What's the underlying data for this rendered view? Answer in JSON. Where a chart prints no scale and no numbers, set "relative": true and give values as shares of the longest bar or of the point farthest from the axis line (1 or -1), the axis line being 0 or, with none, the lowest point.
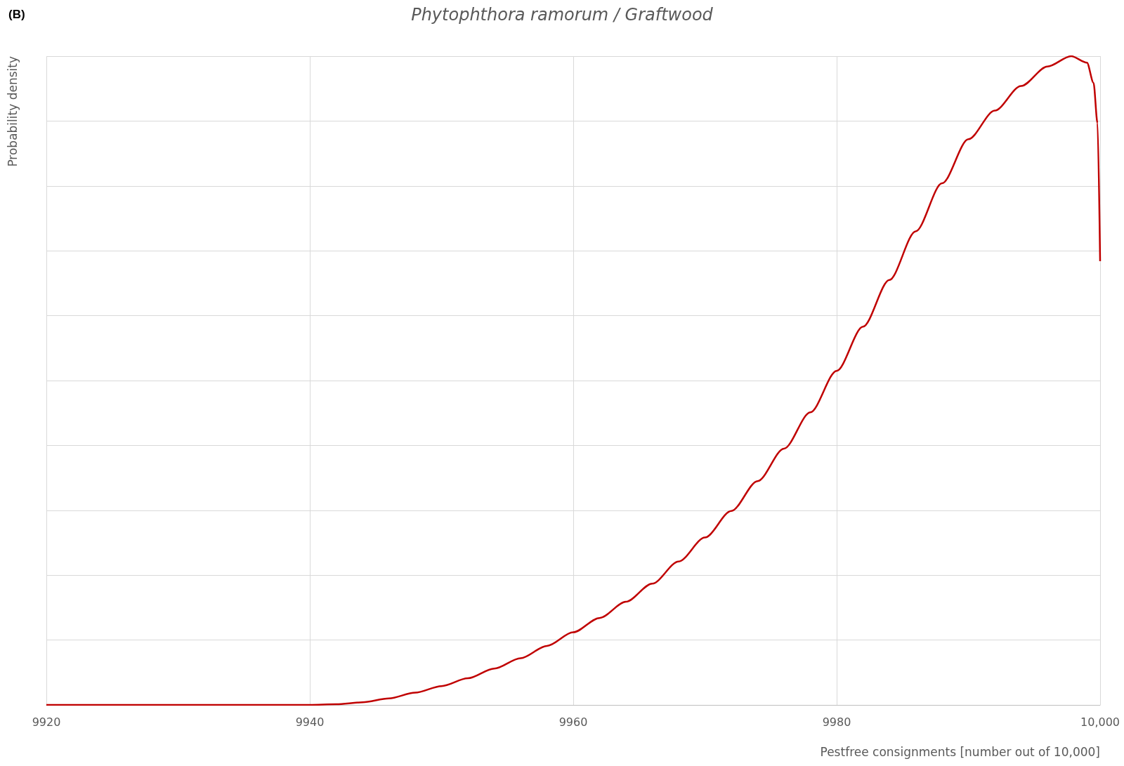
{
  "chart_data": {
    "type": "line",
    "title": "Phytophthora ramorum / Graftwood",
    "xlabel": "Pestfree consignments [number out of 10,000]",
    "ylabel": "Probability density",
    "annotations": [
      "(B)"
    ],
    "relative": true,
    "grid": true,
    "marker": "none",
    "line_style": "solid",
    "xlim": [
      9920,
      10000
    ],
    "xticks": [
      9920,
      9940,
      9960,
      9980,
      {
        "value": 10000,
        "label": "10,000"
      }
    ],
    "x": [
      9920,
      9930,
      9940,
      9942,
      9944,
      9946,
      9948,
      9950,
      9952,
      9954,
      9956,
      9958,
      9960,
      9962,
      9964,
      9966,
      9968,
      9970,
      9972,
      9974,
      9976,
      9978,
      9980,
      9982,
      9984,
      9986,
      9988,
      9990,
      9992,
      9994,
      9996,
      9997.8,
      9999,
      9999.5,
      9999.8,
      10000
    ],
    "series": [
      {
        "color": "#c00000",
        "values": [
          0,
          0,
          0,
          0.001,
          0.004,
          0.01,
          0.019,
          0.029,
          0.041,
          0.056,
          0.072,
          0.091,
          0.112,
          0.134,
          0.159,
          0.187,
          0.221,
          0.258,
          0.299,
          0.345,
          0.395,
          0.451,
          0.515,
          0.583,
          0.655,
          0.73,
          0.804,
          0.872,
          0.916,
          0.954,
          0.984,
          1,
          0.99,
          0.959,
          0.897,
          0.684
        ]
      }
    ]
  }
}
